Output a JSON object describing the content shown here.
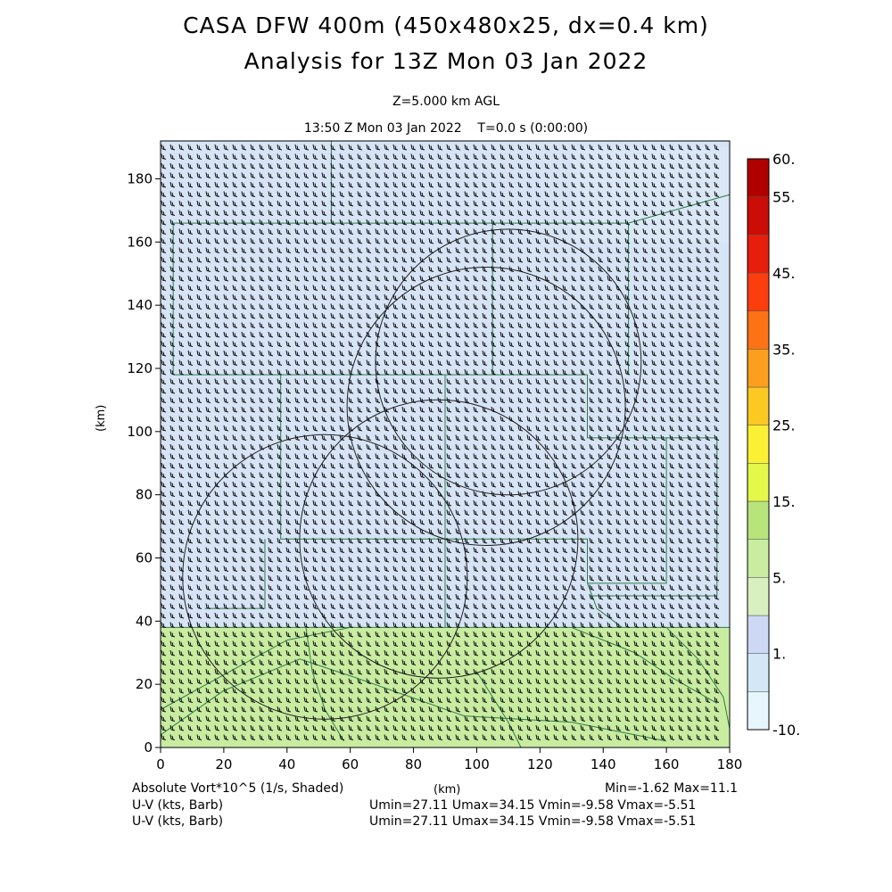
{
  "title": {
    "line1": "CASA DFW 400m (450x480x25, dx=0.4 km)",
    "line2": "Analysis for 13Z Mon 03 Jan 2022",
    "level": "Z=5.000 km AGL",
    "time": "13:50 Z Mon 03 Jan 2022    T=0.0 s (0:00:00)"
  },
  "axes": {
    "x_ticks": [
      "0",
      "20",
      "40",
      "60",
      "80",
      "100",
      "120",
      "140",
      "160",
      "180"
    ],
    "y_ticks": [
      "0",
      "20",
      "40",
      "60",
      "80",
      "100",
      "120",
      "140",
      "160",
      "180"
    ],
    "x_unit": "(km)",
    "y_unit": "(km)",
    "x_range": [
      0,
      180
    ],
    "y_range": [
      0,
      192
    ]
  },
  "colorbar": {
    "labels": [
      "60.",
      "55.",
      "45.",
      "35.",
      "25.",
      "15.",
      "5.",
      "1.",
      "-10."
    ],
    "colors": [
      "#e6f6fc",
      "#d2e8f6",
      "#ccd8f4",
      "#d8f0c0",
      "#c8eca0",
      "#b8e47c",
      "#e4f84a",
      "#fcf034",
      "#fcc822",
      "#fc9e1e",
      "#fc7214",
      "#fc3e0e",
      "#e81e0c",
      "#cc0c06",
      "#b00000"
    ]
  },
  "field": {
    "name": "Absolute Vort*10^5 (1/s, Shaded)",
    "min_max": "Min=-1.62 Max=11.1",
    "regions": [
      {
        "y0": 0,
        "y1": 38,
        "color": "#c8eca0"
      },
      {
        "y0": 38,
        "y1": 192,
        "color": "#d6e4f6"
      }
    ]
  },
  "footer": {
    "wind1_label": "U-V (kts, Barb)",
    "wind1_stats": "Umin=27.11 Umax=34.15 Vmin=-9.58 Vmax=-5.51",
    "wind2_label": "U-V (kts, Barb)",
    "wind2_stats": "Umin=27.11 Umax=34.15 Vmin=-9.58 Vmax=-5.51"
  },
  "radar_rings": [
    {
      "center_km": [
        52,
        54
      ],
      "radius_km": 45
    },
    {
      "center_km": [
        88,
        66
      ],
      "radius_km": 44
    },
    {
      "center_km": [
        103,
        108
      ],
      "radius_km": 44
    },
    {
      "center_km": [
        110,
        122
      ],
      "radius_km": 42
    }
  ]
}
